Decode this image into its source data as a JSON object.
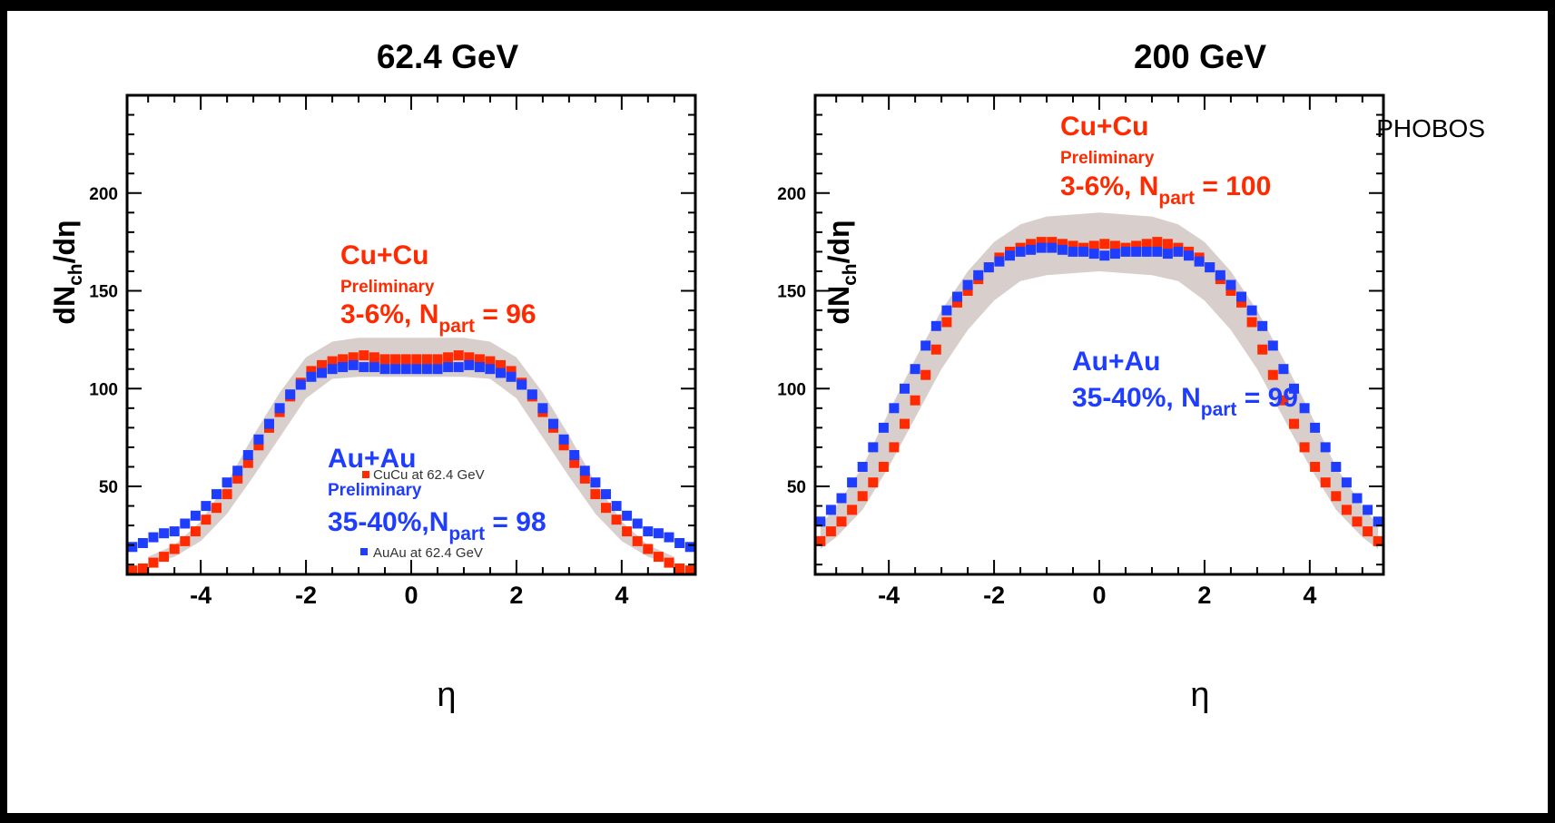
{
  "figure": {
    "background": "#ffffff",
    "colors": {
      "cucu": "#ff2a00",
      "auau": "#1f3dff",
      "band": "#d8cfcc"
    }
  },
  "chart_data": [
    {
      "type": "scatter",
      "title": "62.4 GeV",
      "xlabel": "η",
      "ylabel": "dN_ch/dη",
      "xlim": [
        -5.4,
        5.4
      ],
      "ylim": [
        5,
        250
      ],
      "x_ticks": [
        -4,
        -2,
        0,
        2,
        4
      ],
      "y_ticks": [
        50,
        100,
        150,
        200
      ],
      "annotations": {
        "red": {
          "system": "Cu+Cu",
          "status": "Preliminary",
          "centrality": "3-6%, N",
          "sub": "part",
          "tail": " = 96"
        },
        "blue": {
          "system": "Au+Au",
          "status": "Preliminary",
          "centrality": "35-40%,N",
          "sub": "part",
          "tail": " = 98"
        }
      },
      "legend": [
        "CuCu at 62.4 GeV",
        "AuAu at 62.4 GeV"
      ],
      "band": {
        "x": [
          -5.0,
          -4.5,
          -4.0,
          -3.5,
          -3.0,
          -2.5,
          -2.0,
          -1.5,
          -1.0,
          0.0,
          1.0,
          1.5,
          2.0,
          2.5,
          3.0,
          3.5,
          4.0,
          4.5,
          5.0
        ],
        "low": [
          10,
          14,
          22,
          36,
          55,
          75,
          95,
          105,
          106,
          106,
          106,
          105,
          95,
          75,
          55,
          36,
          22,
          14,
          10
        ],
        "high": [
          14,
          20,
          32,
          52,
          76,
          98,
          116,
          124,
          126,
          126,
          126,
          124,
          116,
          98,
          76,
          52,
          32,
          20,
          14
        ]
      },
      "series": [
        {
          "name": "CuCu at 62.4 GeV",
          "x": [
            -5.3,
            -5.1,
            -4.9,
            -4.7,
            -4.5,
            -4.3,
            -4.1,
            -3.9,
            -3.7,
            -3.5,
            -3.3,
            -3.1,
            -2.9,
            -2.7,
            -2.5,
            -2.3,
            -2.1,
            -1.9,
            -1.7,
            -1.5,
            -1.3,
            -1.1,
            -0.9,
            -0.7,
            -0.5,
            -0.3,
            -0.1,
            0.1,
            0.3,
            0.5,
            0.7,
            0.9,
            1.1,
            1.3,
            1.5,
            1.7,
            1.9,
            2.1,
            2.3,
            2.5,
            2.7,
            2.9,
            3.1,
            3.3,
            3.5,
            3.7,
            3.9,
            4.1,
            4.3,
            4.5,
            4.7,
            4.9,
            5.1,
            5.3
          ],
          "y": [
            7,
            8,
            11,
            14,
            18,
            22,
            27,
            33,
            39,
            46,
            54,
            62,
            71,
            80,
            88,
            96,
            103,
            109,
            112,
            114,
            115,
            116,
            117,
            116,
            115,
            115,
            115,
            115,
            115,
            115,
            116,
            117,
            116,
            115,
            114,
            112,
            109,
            103,
            96,
            88,
            80,
            71,
            62,
            54,
            46,
            39,
            33,
            27,
            22,
            18,
            14,
            11,
            8,
            7
          ]
        },
        {
          "name": "AuAu at 62.4 GeV",
          "x": [
            -5.3,
            -5.1,
            -4.9,
            -4.7,
            -4.5,
            -4.3,
            -4.1,
            -3.9,
            -3.7,
            -3.5,
            -3.3,
            -3.1,
            -2.9,
            -2.7,
            -2.5,
            -2.3,
            -2.1,
            -1.9,
            -1.7,
            -1.5,
            -1.3,
            -1.1,
            -0.9,
            -0.7,
            -0.5,
            -0.3,
            -0.1,
            0.1,
            0.3,
            0.5,
            0.7,
            0.9,
            1.1,
            1.3,
            1.5,
            1.7,
            1.9,
            2.1,
            2.3,
            2.5,
            2.7,
            2.9,
            3.1,
            3.3,
            3.5,
            3.7,
            3.9,
            4.1,
            4.3,
            4.5,
            4.7,
            4.9,
            5.1,
            5.3
          ],
          "y": [
            19,
            21,
            24,
            26,
            27,
            31,
            35,
            40,
            46,
            52,
            58,
            66,
            74,
            82,
            90,
            97,
            102,
            106,
            108,
            110,
            111,
            112,
            111,
            111,
            110,
            110,
            110,
            110,
            110,
            110,
            111,
            111,
            112,
            111,
            110,
            108,
            106,
            102,
            97,
            90,
            82,
            74,
            66,
            58,
            52,
            46,
            40,
            35,
            31,
            27,
            26,
            24,
            21,
            19
          ]
        }
      ]
    },
    {
      "type": "scatter",
      "title": "200 GeV",
      "xlabel": "η",
      "ylabel": "dN_ch/dη",
      "xlim": [
        -5.4,
        5.4
      ],
      "ylim": [
        5,
        250
      ],
      "x_ticks": [
        -4,
        -2,
        0,
        2,
        4
      ],
      "y_ticks": [
        50,
        100,
        150,
        200
      ],
      "experiment": "PHOBOS",
      "annotations": {
        "red": {
          "system": "Cu+Cu",
          "status": "Preliminary",
          "centrality": "3-6%, N",
          "sub": "part",
          "tail": " = 100"
        },
        "blue": {
          "system": "Au+Au",
          "status": "",
          "centrality": "35-40%, N",
          "sub": "part",
          "tail": " = 99"
        }
      },
      "band": {
        "x": [
          -5.3,
          -5.0,
          -4.5,
          -4.0,
          -3.5,
          -3.0,
          -2.5,
          -2.0,
          -1.5,
          -1.0,
          0.0,
          1.0,
          1.5,
          2.0,
          2.5,
          3.0,
          3.5,
          4.0,
          4.5,
          5.0,
          5.3
        ],
        "low": [
          18,
          24,
          38,
          60,
          85,
          110,
          130,
          145,
          155,
          158,
          160,
          158,
          155,
          145,
          130,
          110,
          85,
          60,
          38,
          24,
          18
        ],
        "high": [
          30,
          40,
          60,
          88,
          115,
          140,
          160,
          175,
          184,
          188,
          190,
          188,
          184,
          175,
          160,
          140,
          115,
          88,
          60,
          40,
          30
        ]
      },
      "series": [
        {
          "name": "Cu+Cu",
          "x": [
            -5.3,
            -5.1,
            -4.9,
            -4.7,
            -4.5,
            -4.3,
            -4.1,
            -3.9,
            -3.7,
            -3.5,
            -3.3,
            -3.1,
            -2.9,
            -2.7,
            -2.5,
            -2.3,
            -2.1,
            -1.9,
            -1.7,
            -1.5,
            -1.3,
            -1.1,
            -0.9,
            -0.7,
            -0.5,
            -0.3,
            -0.1,
            0.1,
            0.3,
            0.5,
            0.7,
            0.9,
            1.1,
            1.3,
            1.5,
            1.7,
            1.9,
            2.1,
            2.3,
            2.5,
            2.7,
            2.9,
            3.1,
            3.3,
            3.5,
            3.7,
            3.9,
            4.1,
            4.3,
            4.5,
            4.7,
            4.9,
            5.1,
            5.3
          ],
          "y": [
            22,
            27,
            32,
            38,
            45,
            52,
            60,
            70,
            82,
            94,
            107,
            120,
            134,
            144,
            150,
            156,
            162,
            167,
            170,
            172,
            174,
            175,
            175,
            174,
            173,
            172,
            173,
            174,
            173,
            172,
            173,
            174,
            175,
            174,
            172,
            170,
            167,
            162,
            156,
            150,
            144,
            134,
            120,
            107,
            94,
            82,
            70,
            60,
            52,
            45,
            38,
            32,
            27,
            22
          ]
        },
        {
          "name": "Au+Au",
          "x": [
            -5.3,
            -5.1,
            -4.9,
            -4.7,
            -4.5,
            -4.3,
            -4.1,
            -3.9,
            -3.7,
            -3.5,
            -3.3,
            -3.1,
            -2.9,
            -2.7,
            -2.5,
            -2.3,
            -2.1,
            -1.9,
            -1.7,
            -1.5,
            -1.3,
            -1.1,
            -0.9,
            -0.7,
            -0.5,
            -0.3,
            -0.1,
            0.1,
            0.3,
            0.5,
            0.7,
            0.9,
            1.1,
            1.3,
            1.5,
            1.7,
            1.9,
            2.1,
            2.3,
            2.5,
            2.7,
            2.9,
            3.1,
            3.3,
            3.5,
            3.7,
            3.9,
            4.1,
            4.3,
            4.5,
            4.7,
            4.9,
            5.1,
            5.3
          ],
          "y": [
            32,
            38,
            44,
            52,
            60,
            70,
            80,
            90,
            100,
            110,
            122,
            132,
            140,
            147,
            153,
            158,
            162,
            165,
            168,
            170,
            171,
            172,
            172,
            171,
            170,
            170,
            169,
            168,
            169,
            170,
            170,
            170,
            170,
            169,
            170,
            168,
            165,
            162,
            158,
            153,
            147,
            140,
            132,
            122,
            110,
            100,
            90,
            80,
            70,
            60,
            52,
            44,
            38,
            32
          ]
        }
      ]
    }
  ]
}
